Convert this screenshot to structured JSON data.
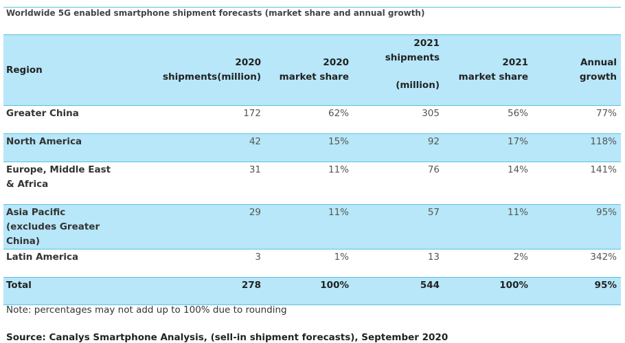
{
  "title": "Worldwide 5G enabled smartphone shipment forecasts (market share and annual growth)",
  "headers": {
    "region": "Region",
    "c1_l1": "2020",
    "c1_l2": "shipments(million)",
    "c2_l1": "2020",
    "c2_l2": "market share",
    "c3_l1": "2021",
    "c3_l2": "shipments",
    "c3_l3": "(million)",
    "c4_l1": "2021",
    "c4_l2": "market share",
    "c5_l1": "Annual",
    "c5_l2": "growth"
  },
  "rows": [
    {
      "region": "Greater China",
      "s2020": "172",
      "m2020": "62%",
      "s2021": "305",
      "m2021": "56%",
      "growth": "77%"
    },
    {
      "region": "North America",
      "s2020": "42",
      "m2020": "15%",
      "s2021": "92",
      "m2021": "17%",
      "growth": "118%"
    },
    {
      "region": "Europe, Middle East & Africa",
      "s2020": "31",
      "m2020": "11%",
      "s2021": "76",
      "m2021": "14%",
      "growth": "141%"
    },
    {
      "region": "Asia Pacific (excludes Greater China)",
      "s2020": "29",
      "m2020": "11%",
      "s2021": "57",
      "m2021": "11%",
      "growth": "95%"
    },
    {
      "region": "Latin America",
      "s2020": "3",
      "m2020": "1%",
      "s2021": "13",
      "m2021": "2%",
      "growth": "342%"
    }
  ],
  "total": {
    "region": "Total",
    "s2020": "278",
    "m2020": "100%",
    "s2021": "544",
    "m2021": "100%",
    "growth": "95%"
  },
  "note": "Note: percentages may not add up to 100% due to rounding",
  "source": "Source: Canalys Smartphone Analysis, (sell-in shipment forecasts), September 2020",
  "colors": {
    "accent_line": "#5bc0de",
    "row_blue": "#b7e7f9"
  }
}
